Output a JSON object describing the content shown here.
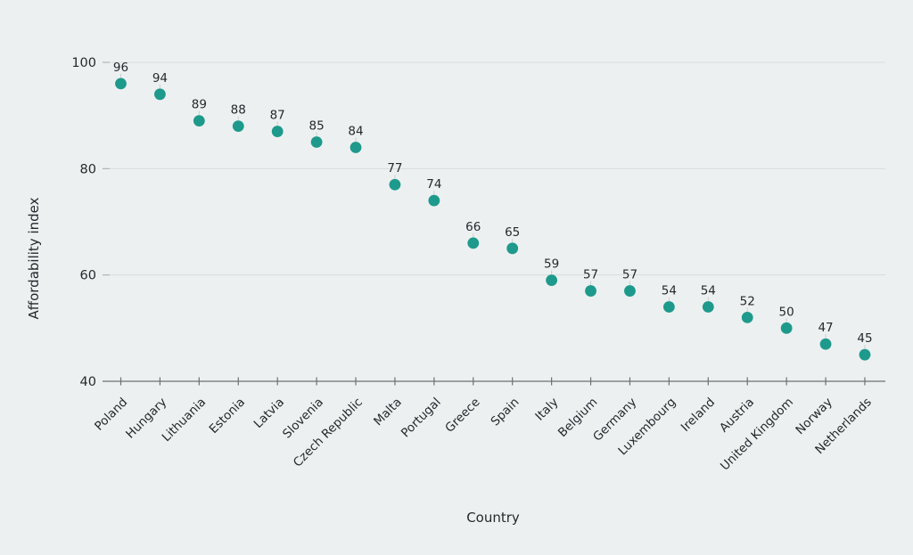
{
  "chart_data": {
    "type": "scatter",
    "title": "",
    "xlabel": "Country",
    "ylabel": "Affordability index",
    "categories": [
      "Poland",
      "Hungary",
      "Lithuania",
      "Estonia",
      "Latvia",
      "Slovenia",
      "Czech Republic",
      "Malta",
      "Portugal",
      "Greece",
      "Spain",
      "Italy",
      "Belgium",
      "Germany",
      "Luxembourg",
      "Ireland",
      "Austria",
      "United Kingdom",
      "Norway",
      "Netherlands"
    ],
    "values": [
      96,
      94,
      89,
      88,
      87,
      85,
      84,
      77,
      74,
      66,
      65,
      59,
      57,
      57,
      54,
      54,
      52,
      50,
      47,
      45
    ],
    "value_labels_shown": true,
    "yticks": [
      40,
      60,
      80,
      100
    ],
    "ylim": [
      40,
      100
    ],
    "grid": "horizontal",
    "legend": "none",
    "colors": {
      "background": "#edf0f1",
      "point": "#1e9a8c",
      "grid": "#d6dbdc",
      "tick_lead": "#aab1b3",
      "axis": "#6b7173",
      "text": "#24292d",
      "leader_line": "#c7cfd0"
    }
  }
}
